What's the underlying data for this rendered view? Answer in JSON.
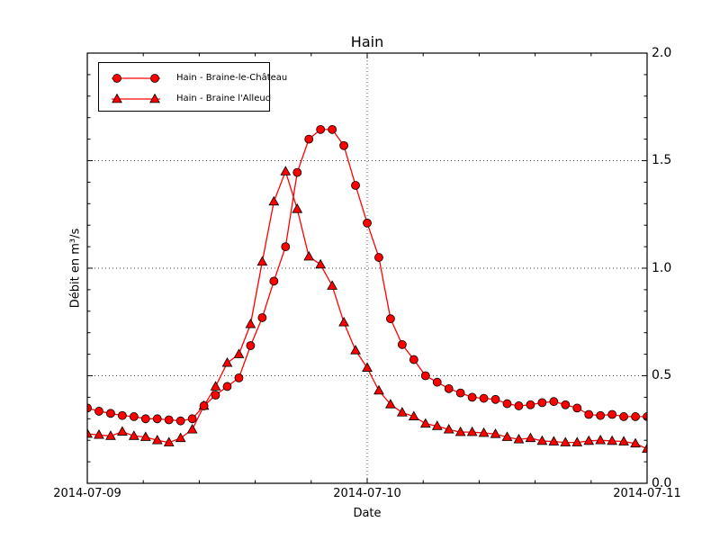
{
  "title": "Hain",
  "xlabel": "Date",
  "ylabel": "Débit en m³/s",
  "x_ticks": [
    "2014-07-09",
    "2014-07-10",
    "2014-07-11"
  ],
  "y_ticks": [
    "2.0",
    "1.5",
    "1.0",
    "0.5",
    "0.0"
  ],
  "colors": {
    "line": "#ff0000",
    "marker_fill": "#ff0000",
    "marker_edge": "#000000",
    "grid": "#444444",
    "frame": "#000000"
  },
  "chart_data": {
    "type": "line",
    "title": "Hain",
    "xlabel": "Date",
    "ylabel": "Débit en m³/s",
    "x_start": "2014-07-09 00:00",
    "x_end": "2014-07-11 00:00",
    "x_step_hours": 1,
    "xticks": [
      "2014-07-09",
      "2014-07-10",
      "2014-07-11"
    ],
    "ylim": [
      0.0,
      2.0
    ],
    "yticks": [
      0.0,
      0.5,
      1.0,
      1.5,
      2.0
    ],
    "grid": "dotted",
    "legend_position": "upper-left",
    "series": [
      {
        "name": "Hain - Braine-le-Château",
        "marker": "circle",
        "color": "#ff0000",
        "values": [
          0.35,
          0.335,
          0.325,
          0.315,
          0.31,
          0.3,
          0.3,
          0.295,
          0.29,
          0.3,
          0.36,
          0.41,
          0.45,
          0.49,
          0.64,
          0.77,
          0.94,
          1.1,
          1.445,
          1.6,
          1.645,
          1.645,
          1.57,
          1.385,
          1.21,
          1.05,
          0.765,
          0.645,
          0.575,
          0.5,
          0.47,
          0.44,
          0.42,
          0.4,
          0.395,
          0.39,
          0.37,
          0.36,
          0.365,
          0.375,
          0.38,
          0.365,
          0.35,
          0.32,
          0.315,
          0.32,
          0.31,
          0.31,
          0.31
        ]
      },
      {
        "name": "Hain - Braine l'Alleud",
        "marker": "triangle",
        "color": "#ff0000",
        "values": [
          0.23,
          0.225,
          0.22,
          0.24,
          0.22,
          0.215,
          0.2,
          0.19,
          0.21,
          0.25,
          0.36,
          0.45,
          0.56,
          0.6,
          0.74,
          1.03,
          1.31,
          1.45,
          1.275,
          1.054,
          1.017,
          0.918,
          0.748,
          0.618,
          0.537,
          0.431,
          0.367,
          0.329,
          0.311,
          0.277,
          0.266,
          0.25,
          0.238,
          0.238,
          0.234,
          0.229,
          0.215,
          0.204,
          0.21,
          0.197,
          0.194,
          0.19,
          0.19,
          0.197,
          0.2,
          0.197,
          0.194,
          0.185,
          0.16
        ]
      }
    ]
  }
}
